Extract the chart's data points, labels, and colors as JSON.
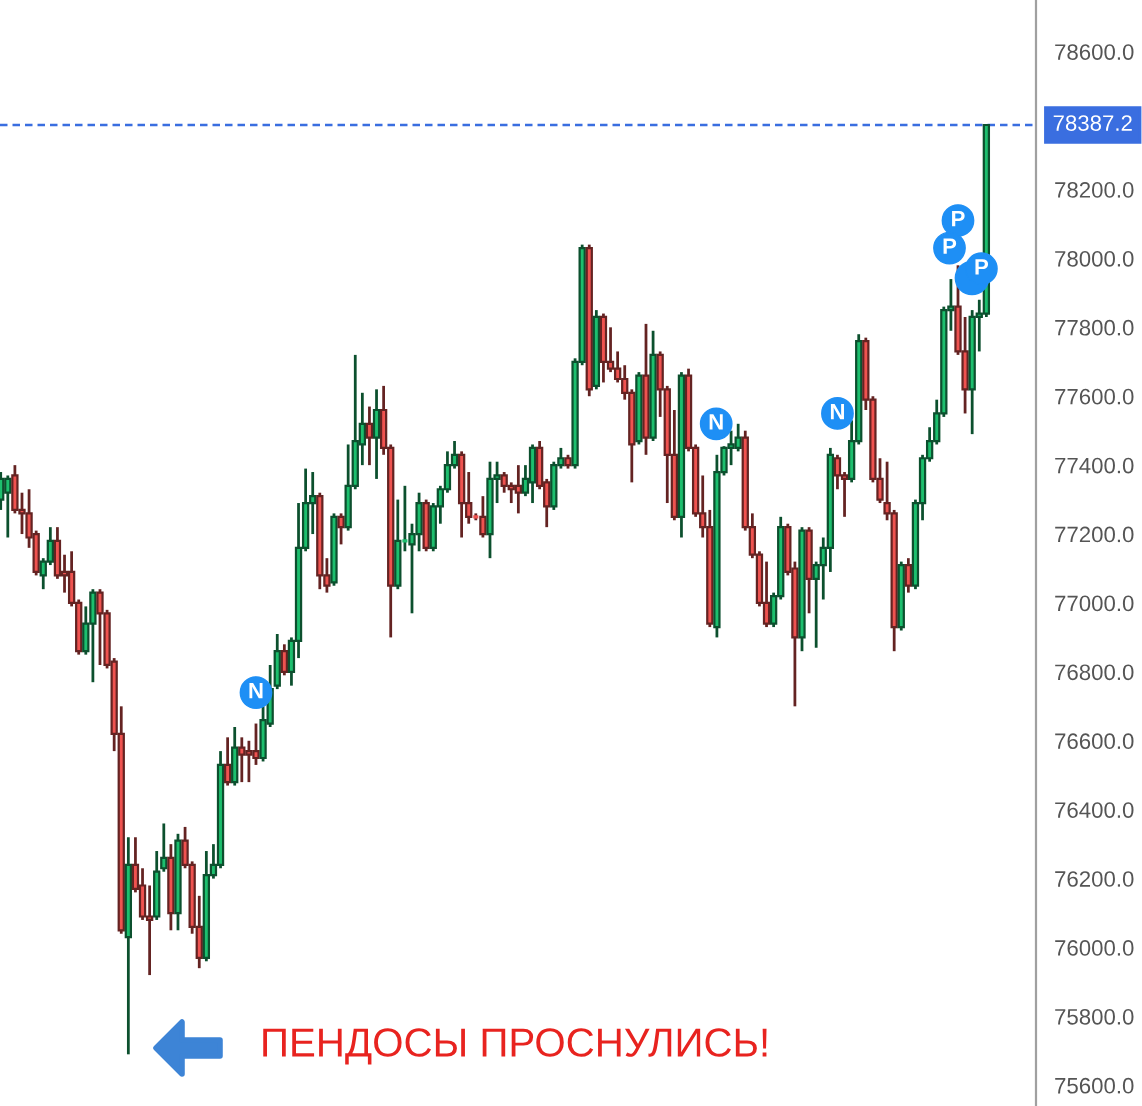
{
  "chart_data": {
    "type": "candlestick",
    "categories": [
      null,
      null,
      null,
      null,
      null,
      null,
      null,
      null,
      null,
      null,
      null,
      null,
      null,
      null,
      null,
      null,
      null,
      null,
      null,
      null,
      null,
      null,
      null,
      null,
      null,
      null,
      null,
      null,
      null,
      null,
      null,
      null,
      null,
      null,
      null,
      null,
      null,
      null,
      null,
      null,
      null,
      null,
      null,
      null,
      null,
      null,
      null,
      null,
      null,
      null,
      null,
      null,
      null,
      null,
      null,
      null,
      null,
      null,
      null,
      null,
      null,
      null,
      null,
      null,
      null,
      null,
      null,
      null,
      null,
      null,
      null,
      null,
      null,
      null,
      null,
      null,
      null,
      null,
      null,
      null,
      null,
      null,
      null,
      null,
      null,
      null,
      null,
      null,
      null,
      null,
      null,
      null,
      null,
      null,
      null,
      null,
      null,
      null,
      null,
      null,
      null,
      null,
      null,
      null,
      null,
      null,
      null,
      null,
      null,
      null,
      null,
      null,
      null,
      null,
      null,
      null,
      null,
      null,
      null,
      null,
      null,
      null,
      null,
      null,
      null,
      null,
      null,
      null,
      null,
      null,
      null,
      null,
      null,
      null,
      null,
      null,
      null,
      null,
      null,
      null
    ],
    "ohlc": [
      [
        77300,
        77380,
        77270,
        77360
      ],
      [
        77320,
        77370,
        77190,
        77360
      ],
      [
        77370,
        77400,
        77260,
        77270
      ],
      [
        77270,
        77320,
        77200,
        77260
      ],
      [
        77260,
        77330,
        77160,
        77190
      ],
      [
        77200,
        77210,
        77080,
        77090
      ],
      [
        77080,
        77130,
        77040,
        77120
      ],
      [
        77120,
        77220,
        77110,
        77180
      ],
      [
        77180,
        77220,
        77070,
        77080
      ],
      [
        77090,
        77140,
        77030,
        77080
      ],
      [
        77090,
        77150,
        76990,
        77000
      ],
      [
        77000,
        77010,
        76850,
        76860
      ],
      [
        76860,
        76990,
        76850,
        76940
      ],
      [
        76940,
        77040,
        76770,
        77030
      ],
      [
        77030,
        77040,
        76820,
        76970
      ],
      [
        76970,
        76980,
        76810,
        76820
      ],
      [
        76830,
        76840,
        76570,
        76620
      ],
      [
        76620,
        76700,
        76040,
        76050
      ],
      [
        76030,
        76320,
        75690,
        76240
      ],
      [
        76240,
        76320,
        76160,
        76170
      ],
      [
        76180,
        76230,
        76080,
        76090
      ],
      [
        76090,
        76180,
        75920,
        76080
      ],
      [
        76090,
        76280,
        76080,
        76220
      ],
      [
        76230,
        76360,
        76220,
        76260
      ],
      [
        76260,
        76300,
        76050,
        76100
      ],
      [
        76100,
        76330,
        76050,
        76310
      ],
      [
        76310,
        76350,
        76230,
        76240
      ],
      [
        76240,
        76250,
        76040,
        76060
      ],
      [
        76060,
        76150,
        75940,
        75970
      ],
      [
        75970,
        76280,
        75960,
        76210
      ],
      [
        76210,
        76300,
        76200,
        76240
      ],
      [
        76240,
        76570,
        76230,
        76530
      ],
      [
        76530,
        76610,
        76470,
        76480
      ],
      [
        76480,
        76640,
        76470,
        76580
      ],
      [
        76580,
        76610,
        76480,
        76560
      ],
      [
        76570,
        76600,
        76480,
        76560
      ],
      [
        76570,
        76650,
        76530,
        76550
      ],
      [
        76550,
        76700,
        76540,
        76660
      ],
      [
        76650,
        76820,
        76640,
        76750
      ],
      [
        76760,
        76910,
        76750,
        76860
      ],
      [
        76860,
        76880,
        76790,
        76800
      ],
      [
        76800,
        76900,
        76760,
        76890
      ],
      [
        76890,
        77290,
        76840,
        77160
      ],
      [
        77160,
        77390,
        77150,
        77290
      ],
      [
        77290,
        77380,
        77200,
        77310
      ],
      [
        77310,
        77320,
        77040,
        77080
      ],
      [
        77080,
        77130,
        77030,
        77050
      ],
      [
        77060,
        77260,
        77050,
        77250
      ],
      [
        77250,
        77260,
        77170,
        77220
      ],
      [
        77220,
        77460,
        77210,
        77340
      ],
      [
        77340,
        77720,
        77330,
        77470
      ],
      [
        77460,
        77610,
        77400,
        77520
      ],
      [
        77520,
        77570,
        77400,
        77480
      ],
      [
        77480,
        77620,
        77360,
        77560
      ],
      [
        77560,
        77630,
        77430,
        77450
      ],
      [
        77450,
        77460,
        76900,
        77050
      ],
      [
        77050,
        77300,
        77040,
        77180
      ],
      [
        77180,
        77340,
        77150,
        77180
      ],
      [
        77170,
        77230,
        76970,
        77200
      ],
      [
        77200,
        77320,
        77150,
        77290
      ],
      [
        77290,
        77300,
        77150,
        77160
      ],
      [
        77160,
        77290,
        77150,
        77280
      ],
      [
        77280,
        77340,
        77230,
        77330
      ],
      [
        77330,
        77440,
        77320,
        77400
      ],
      [
        77400,
        77470,
        77390,
        77430
      ],
      [
        77430,
        77440,
        77190,
        77290
      ],
      [
        77290,
        77380,
        77230,
        77250
      ],
      [
        77250,
        77260,
        77240,
        77250
      ],
      [
        77250,
        77310,
        77190,
        77200
      ],
      [
        77200,
        77410,
        77130,
        77360
      ],
      [
        77360,
        77410,
        77290,
        77370
      ],
      [
        77370,
        77380,
        77320,
        77340
      ],
      [
        77340,
        77350,
        77290,
        77330
      ],
      [
        77340,
        77400,
        77260,
        77320
      ],
      [
        77320,
        77400,
        77310,
        77360
      ],
      [
        77350,
        77460,
        77290,
        77450
      ],
      [
        77450,
        77470,
        77330,
        77340
      ],
      [
        77350,
        77360,
        77220,
        77280
      ],
      [
        77280,
        77410,
        77270,
        77400
      ],
      [
        77400,
        77450,
        77390,
        77420
      ],
      [
        77420,
        77430,
        77390,
        77400
      ],
      [
        77400,
        77710,
        77390,
        77700
      ],
      [
        77700,
        78040,
        77690,
        78030
      ],
      [
        78030,
        78040,
        77600,
        77620
      ],
      [
        77630,
        77850,
        77620,
        77830
      ],
      [
        77830,
        77840,
        77640,
        77700
      ],
      [
        77700,
        77800,
        77670,
        77680
      ],
      [
        77680,
        77730,
        77640,
        77650
      ],
      [
        77650,
        77690,
        77590,
        77610
      ],
      [
        77610,
        77620,
        77350,
        77460
      ],
      [
        77470,
        77670,
        77460,
        77660
      ],
      [
        77660,
        77810,
        77430,
        77480
      ],
      [
        77480,
        77790,
        77470,
        77720
      ],
      [
        77720,
        77730,
        77540,
        77620
      ],
      [
        77620,
        77630,
        77290,
        77430
      ],
      [
        77430,
        77560,
        77240,
        77250
      ],
      [
        77250,
        77670,
        77190,
        77660
      ],
      [
        77660,
        77680,
        77440,
        77450
      ],
      [
        77450,
        77460,
        77250,
        77260
      ],
      [
        77260,
        77370,
        77190,
        77220
      ],
      [
        77220,
        77270,
        76930,
        76940
      ],
      [
        76930,
        77430,
        76900,
        77380
      ],
      [
        77380,
        77455,
        77370,
        77450
      ],
      [
        77450,
        77500,
        77400,
        77460
      ],
      [
        77450,
        77520,
        77440,
        77480
      ],
      [
        77480,
        77500,
        77210,
        77220
      ],
      [
        77220,
        77260,
        77130,
        77140
      ],
      [
        77140,
        77150,
        76990,
        77000
      ],
      [
        77000,
        77120,
        76930,
        76940
      ],
      [
        76940,
        77030,
        76930,
        77020
      ],
      [
        77020,
        77250,
        77010,
        77220
      ],
      [
        77220,
        77230,
        77080,
        77090
      ],
      [
        77100,
        77120,
        76700,
        76900
      ],
      [
        76900,
        77220,
        76860,
        77210
      ],
      [
        77210,
        77220,
        76970,
        77070
      ],
      [
        77070,
        77120,
        76870,
        77110
      ],
      [
        77110,
        77190,
        77010,
        77160
      ],
      [
        77160,
        77450,
        77090,
        77430
      ],
      [
        77420,
        77430,
        77330,
        77370
      ],
      [
        77370,
        77380,
        77250,
        77360
      ],
      [
        77360,
        77530,
        77350,
        77470
      ],
      [
        77470,
        77780,
        77460,
        77760
      ],
      [
        77760,
        77770,
        77560,
        77590
      ],
      [
        77590,
        77600,
        77350,
        77360
      ],
      [
        77360,
        77420,
        77290,
        77300
      ],
      [
        77290,
        77410,
        77240,
        77260
      ],
      [
        77260,
        77270,
        76860,
        76930
      ],
      [
        76930,
        77120,
        76920,
        77110
      ],
      [
        77110,
        77130,
        77030,
        77050
      ],
      [
        77050,
        77300,
        77040,
        77290
      ],
      [
        77290,
        77430,
        77240,
        77420
      ],
      [
        77420,
        77510,
        77410,
        77470
      ],
      [
        77470,
        77590,
        77460,
        77550
      ],
      [
        77550,
        77860,
        77540,
        77850
      ],
      [
        77850,
        77940,
        77790,
        77860
      ],
      [
        77860,
        77980,
        77720,
        77730
      ],
      [
        77730,
        77830,
        77550,
        77620
      ],
      [
        77620,
        77850,
        77490,
        77830
      ],
      [
        77830,
        77880,
        77730,
        77840
      ],
      [
        77840,
        78390,
        77830,
        78387.2
      ]
    ],
    "colors": [
      "#1dbf6e",
      "#1dbf6e",
      "#ef5350",
      "#ef5350",
      "#ef5350",
      "#ef5350",
      "#1dbf6e",
      "#1dbf6e",
      "#ef5350",
      "#ef5350",
      "#ef5350",
      "#ef5350",
      "#1dbf6e",
      "#1dbf6e",
      "#ef5350",
      "#ef5350",
      "#ef5350",
      "#ef5350",
      "#1dbf6e",
      "#ef5350",
      "#ef5350",
      "#ef5350",
      "#1dbf6e",
      "#1dbf6e",
      "#ef5350",
      "#1dbf6e",
      "#ef5350",
      "#ef5350",
      "#ef5350",
      "#1dbf6e",
      "#1dbf6e",
      "#1dbf6e",
      "#ef5350",
      "#1dbf6e",
      "#ef5350",
      "#ef5350",
      "#ef5350",
      "#1dbf6e",
      "#1dbf6e",
      "#1dbf6e",
      "#ef5350",
      "#1dbf6e",
      "#1dbf6e",
      "#1dbf6e",
      "#1dbf6e",
      "#ef5350",
      "#ef5350",
      "#1dbf6e",
      "#ef5350",
      "#1dbf6e",
      "#1dbf6e",
      "#1dbf6e",
      "#ef5350",
      "#1dbf6e",
      "#ef5350",
      "#ef5350",
      "#1dbf6e",
      "#1dbf6e",
      "#1dbf6e",
      "#1dbf6e",
      "#ef5350",
      "#1dbf6e",
      "#1dbf6e",
      "#1dbf6e",
      "#1dbf6e",
      "#ef5350",
      "#ef5350",
      "#ef5350",
      "#ef5350",
      "#1dbf6e",
      "#1dbf6e",
      "#ef5350",
      "#ef5350",
      "#ef5350",
      "#1dbf6e",
      "#1dbf6e",
      "#ef5350",
      "#ef5350",
      "#1dbf6e",
      "#1dbf6e",
      "#ef5350",
      "#1dbf6e",
      "#1dbf6e",
      "#ef5350",
      "#1dbf6e",
      "#ef5350",
      "#ef5350",
      "#ef5350",
      "#ef5350",
      "#ef5350",
      "#1dbf6e",
      "#ef5350",
      "#1dbf6e",
      "#ef5350",
      "#ef5350",
      "#ef5350",
      "#1dbf6e",
      "#ef5350",
      "#ef5350",
      "#ef5350",
      "#ef5350",
      "#1dbf6e",
      "#1dbf6e",
      "#1dbf6e",
      "#1dbf6e",
      "#ef5350",
      "#ef5350",
      "#ef5350",
      "#ef5350",
      "#1dbf6e",
      "#1dbf6e",
      "#ef5350",
      "#ef5350",
      "#1dbf6e",
      "#ef5350",
      "#1dbf6e",
      "#1dbf6e",
      "#1dbf6e",
      "#ef5350",
      "#ef5350",
      "#1dbf6e",
      "#1dbf6e",
      "#ef5350",
      "#ef5350",
      "#ef5350",
      "#ef5350",
      "#ef5350",
      "#1dbf6e",
      "#ef5350",
      "#1dbf6e",
      "#1dbf6e",
      "#1dbf6e",
      "#1dbf6e",
      "#1dbf6e",
      "#1dbf6e",
      "#ef5350",
      "#ef5350",
      "#1dbf6e",
      "#1dbf6e",
      "#1dbf6e"
    ],
    "ylim": [
      75540,
      78750
    ],
    "yticks": [
      {
        "value": 78600,
        "label": "78600.0"
      },
      {
        "value": 78200,
        "label": "78200.0"
      },
      {
        "value": 78000,
        "label": "78000.0"
      },
      {
        "value": 77800,
        "label": "77800.0"
      },
      {
        "value": 77600,
        "label": "77600.0"
      },
      {
        "value": 77400,
        "label": "77400.0"
      },
      {
        "value": 77200,
        "label": "77200.0"
      },
      {
        "value": 77000,
        "label": "77000.0"
      },
      {
        "value": 76800,
        "label": "76800.0"
      },
      {
        "value": 76600,
        "label": "76600.0"
      },
      {
        "value": 76400,
        "label": "76400.0"
      },
      {
        "value": 76200,
        "label": "76200.0"
      },
      {
        "value": 76000,
        "label": "76000.0"
      },
      {
        "value": 75800,
        "label": "75800.0"
      },
      {
        "value": 75600,
        "label": "75600.0"
      }
    ],
    "tick_labels": "y",
    "ref_lines": [
      {
        "axis": "y",
        "value": 78387.2,
        "label": "78387.2",
        "color": "#3a6ee0",
        "line_style": "dashed"
      }
    ],
    "annotations": [
      {
        "text": "N",
        "y": 76740
      },
      {
        "text": "N",
        "y": 77520
      },
      {
        "text": "N",
        "y": 77550
      },
      {
        "text": "P",
        "y": 78110
      },
      {
        "text": "P",
        "y": 78030
      },
      {
        "text": "P",
        "y": 77970
      },
      "ПЕНДОСЫ ПРОСНУЛИСЬ!"
    ]
  }
}
